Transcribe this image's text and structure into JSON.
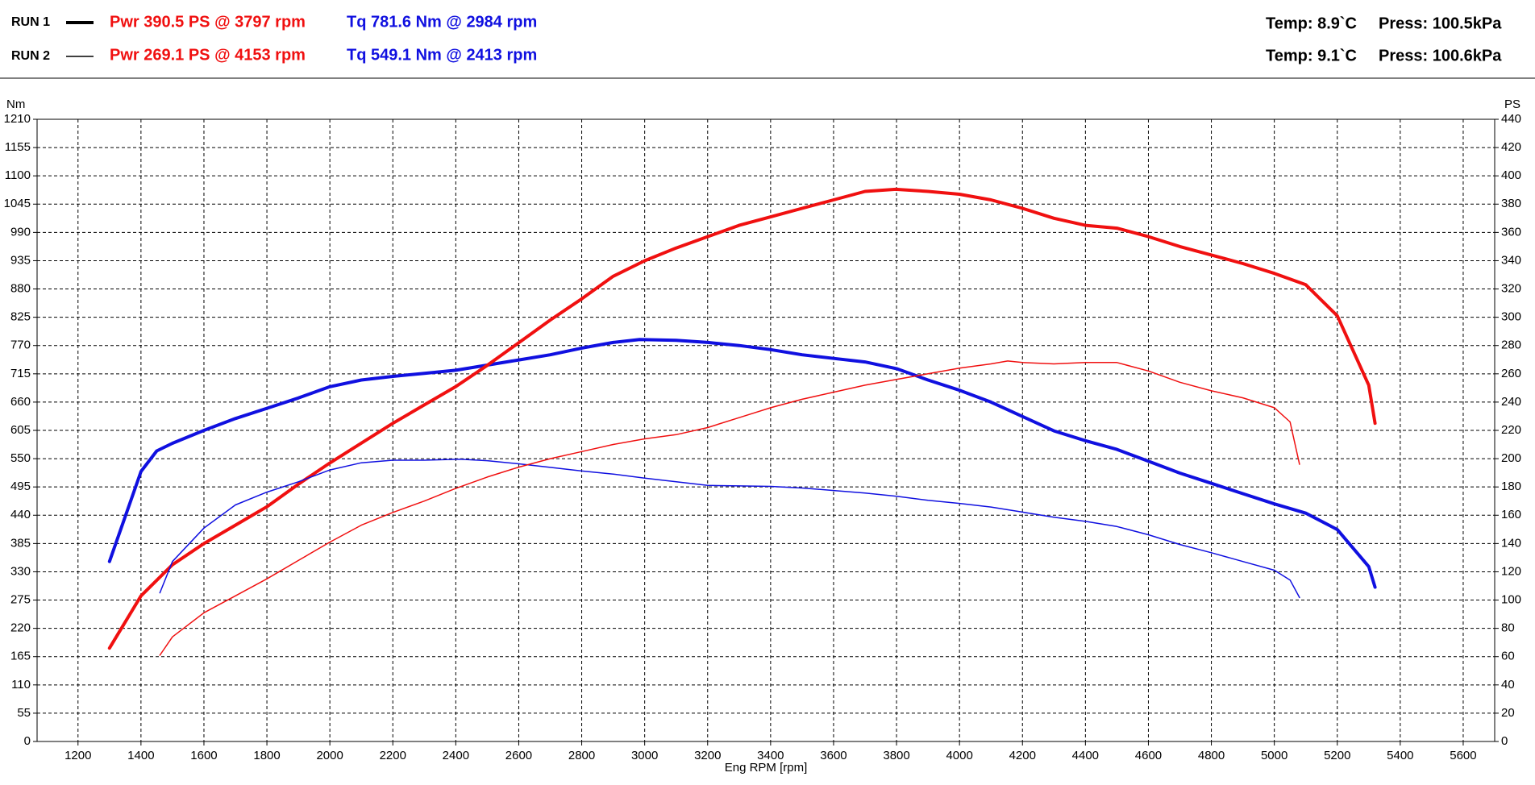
{
  "header": {
    "runs": [
      {
        "name": "RUN 1",
        "power": "Pwr  390.5 PS @ 3797 rpm",
        "torque": "Tq 781.6 Nm @ 2984 rpm",
        "temp": "Temp: 8.9`C",
        "press": "Press: 100.5kPa"
      },
      {
        "name": "RUN 2",
        "power": "Pwr  269.1 PS @ 4153 rpm",
        "torque": "Tq 549.1 Nm @ 2413 rpm",
        "temp": "Temp: 9.1`C",
        "press": "Press: 100.6kPa"
      }
    ]
  },
  "chart_data": {
    "type": "line",
    "x_label": "Eng RPM [rpm]",
    "y_label": "Nm",
    "y2_label": "PS",
    "xlim": [
      1070,
      5700
    ],
    "xticks": [
      1200,
      1400,
      1600,
      1800,
      2000,
      2200,
      2400,
      2600,
      2800,
      3000,
      3200,
      3400,
      3600,
      3800,
      4000,
      4200,
      4400,
      4600,
      4800,
      5000,
      5200,
      5400,
      5600
    ],
    "ylim": [
      0,
      1210
    ],
    "yticks": [
      0,
      55,
      110,
      165,
      220,
      275,
      330,
      385,
      440,
      495,
      550,
      605,
      660,
      715,
      770,
      825,
      880,
      935,
      990,
      1045,
      1100,
      1155,
      1210
    ],
    "y2lim": [
      0,
      440
    ],
    "y2ticks": [
      0,
      20,
      40,
      60,
      80,
      100,
      120,
      140,
      160,
      180,
      200,
      220,
      240,
      260,
      280,
      300,
      320,
      340,
      360,
      380,
      400,
      420,
      440
    ],
    "grid": true,
    "series": [
      {
        "color": "#1010e0",
        "width": 4,
        "axis": "y",
        "x": [
          1300,
          1400,
          1450,
          1500,
          1600,
          1700,
          1800,
          1900,
          2000,
          2100,
          2200,
          2300,
          2400,
          2500,
          2600,
          2700,
          2800,
          2900,
          2984,
          3100,
          3200,
          3300,
          3400,
          3500,
          3600,
          3700,
          3800,
          3900,
          4000,
          4100,
          4200,
          4300,
          4400,
          4500,
          4600,
          4700,
          4800,
          4900,
          5000,
          5100,
          5200,
          5300,
          5320
        ],
        "values": [
          350,
          525,
          565,
          580,
          605,
          628,
          648,
          668,
          690,
          703,
          710,
          716,
          722,
          732,
          742,
          752,
          765,
          776,
          781.6,
          780,
          776,
          770,
          762,
          752,
          745,
          738,
          725,
          703,
          683,
          660,
          632,
          604,
          585,
          568,
          545,
          522,
          502,
          482,
          462,
          444,
          412,
          340,
          300
        ]
      },
      {
        "color": "#f01010",
        "width": 4,
        "axis": "y2",
        "x": [
          1300,
          1400,
          1500,
          1600,
          1700,
          1800,
          1900,
          2000,
          2100,
          2200,
          2300,
          2400,
          2500,
          2600,
          2700,
          2800,
          2900,
          3000,
          3100,
          3200,
          3300,
          3400,
          3500,
          3600,
          3700,
          3797,
          3900,
          4000,
          4100,
          4200,
          4300,
          4400,
          4500,
          4600,
          4700,
          4800,
          4900,
          5000,
          5100,
          5200,
          5300,
          5320
        ],
        "values": [
          66,
          103,
          125,
          140,
          153,
          166,
          182,
          197,
          211,
          225,
          238,
          251,
          266,
          282,
          298,
          313,
          329,
          340,
          349,
          357,
          365,
          371,
          377,
          383,
          389,
          390.5,
          389,
          387,
          383,
          377,
          370,
          365,
          363,
          357,
          350,
          344,
          338,
          331,
          323,
          301,
          252,
          225
        ]
      },
      {
        "color": "#1010e0",
        "width": 1.5,
        "axis": "y",
        "x": [
          1460,
          1500,
          1600,
          1700,
          1800,
          1900,
          2000,
          2100,
          2200,
          2300,
          2413,
          2500,
          2600,
          2700,
          2800,
          2900,
          3000,
          3100,
          3200,
          3300,
          3400,
          3500,
          3600,
          3700,
          3800,
          3900,
          4000,
          4100,
          4200,
          4300,
          4400,
          4500,
          4600,
          4700,
          4800,
          4900,
          5000,
          5050,
          5080
        ],
        "values": [
          289,
          350,
          415,
          460,
          485,
          505,
          528,
          542,
          547,
          547,
          549.1,
          546,
          540,
          533,
          526,
          520,
          512,
          505,
          498,
          497,
          496,
          493,
          488,
          483,
          477,
          469,
          463,
          456,
          446,
          436,
          428,
          418,
          402,
          383,
          367,
          350,
          333,
          314,
          280
        ]
      },
      {
        "color": "#f01010",
        "width": 1.5,
        "axis": "y2",
        "x": [
          1460,
          1500,
          1600,
          1700,
          1800,
          1900,
          2000,
          2100,
          2200,
          2300,
          2400,
          2500,
          2600,
          2700,
          2800,
          2900,
          3000,
          3100,
          3200,
          3300,
          3400,
          3500,
          3600,
          3700,
          3800,
          3900,
          4000,
          4100,
          4153,
          4200,
          4300,
          4400,
          4500,
          4600,
          4700,
          4800,
          4900,
          5000,
          5050,
          5080
        ],
        "values": [
          61,
          74,
          91,
          103,
          115,
          128,
          141,
          153,
          162,
          170,
          179,
          187,
          194,
          200,
          205,
          210,
          214,
          217,
          222,
          229,
          236,
          242,
          247,
          252,
          256,
          260,
          264,
          267,
          269.1,
          268,
          267,
          268,
          268,
          262,
          254,
          248,
          243,
          236,
          226,
          196
        ]
      }
    ]
  }
}
